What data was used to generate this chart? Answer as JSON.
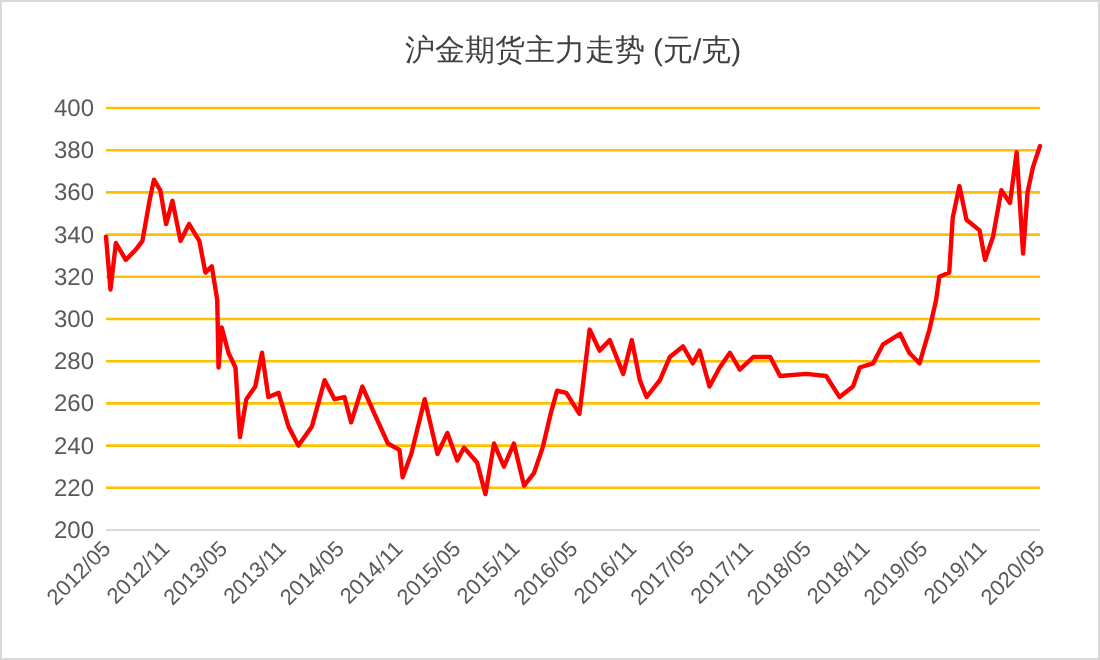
{
  "chart_data": {
    "type": "line",
    "title": "沪金期货主力走势 (元/克)",
    "x": [
      "2012-05-01",
      "2012-05-15",
      "2012-06-01",
      "2012-07-02",
      "2012-08-03",
      "2012-08-23",
      "2012-09-14",
      "2012-09-28",
      "2012-10-18",
      "2012-11-05",
      "2012-11-25",
      "2012-12-20",
      "2013-01-16",
      "2013-02-17",
      "2013-03-08",
      "2013-03-28",
      "2013-04-14",
      "2013-04-18",
      "2013-04-28",
      "2013-05-19",
      "2013-06-10",
      "2013-06-24",
      "2013-07-14",
      "2013-08-11",
      "2013-09-01",
      "2013-09-21",
      "2013-10-23",
      "2013-11-23",
      "2013-12-24",
      "2014-02-04",
      "2014-03-16",
      "2014-04-16",
      "2014-05-17",
      "2014-06-07",
      "2014-07-12",
      "2014-08-19",
      "2014-09-30",
      "2014-11-05",
      "2014-11-15",
      "2014-12-12",
      "2015-01-23",
      "2015-03-04",
      "2015-04-04",
      "2015-05-05",
      "2015-05-26",
      "2015-07-06",
      "2015-08-01",
      "2015-08-28",
      "2015-09-28",
      "2015-10-29",
      "2015-11-30",
      "2015-12-31",
      "2016-01-27",
      "2016-02-21",
      "2016-03-12",
      "2016-04-10",
      "2016-05-21",
      "2016-06-22",
      "2016-07-23",
      "2016-08-24",
      "2016-10-05",
      "2016-11-01",
      "2016-11-26",
      "2016-12-17",
      "2017-01-28",
      "2017-02-28",
      "2017-04-10",
      "2017-05-11",
      "2017-06-01",
      "2017-07-02",
      "2017-08-03",
      "2017-09-04",
      "2017-10-05",
      "2017-11-16",
      "2018-01-08",
      "2018-02-08",
      "2018-05-01",
      "2018-07-02",
      "2018-08-13",
      "2018-09-24",
      "2018-10-15",
      "2018-11-26",
      "2018-12-27",
      "2019-02-18",
      "2019-03-19",
      "2019-04-20",
      "2019-05-21",
      "2019-06-11",
      "2019-06-21",
      "2019-07-22",
      "2019-08-02",
      "2019-08-23",
      "2019-09-14",
      "2019-10-25",
      "2019-11-11",
      "2019-12-06",
      "2020-01-01",
      "2020-01-28",
      "2020-02-18",
      "2020-03-09",
      "2020-03-23",
      "2020-04-09",
      "2020-05-01"
    ],
    "series": [
      {
        "color": "#ff0000",
        "values": [
          339,
          314,
          336,
          328,
          333,
          337,
          356,
          366,
          361,
          345,
          356,
          337,
          345,
          337,
          322,
          325,
          309,
          277,
          296,
          284,
          277,
          244,
          262,
          268,
          284,
          263,
          265,
          249,
          240,
          249,
          271,
          262,
          263,
          251,
          268,
          255,
          241,
          238,
          225,
          236,
          262,
          236,
          246,
          233,
          239,
          232,
          217,
          241,
          230,
          241,
          221,
          227,
          239,
          255,
          266,
          265,
          255,
          295,
          285,
          290,
          274,
          290,
          271,
          263,
          271,
          282,
          287,
          279,
          285,
          268,
          277,
          284,
          276,
          282,
          282,
          273,
          274,
          273,
          263,
          268,
          277,
          279,
          288,
          293,
          284,
          279,
          295,
          309,
          320,
          322,
          348,
          363,
          347,
          342,
          328,
          339,
          361,
          355,
          379,
          331,
          360,
          372,
          382
        ]
      }
    ],
    "xlim": [
      "2012-05-01",
      "2020-05-01"
    ],
    "xticks": [
      {
        "value": "2012-05-01",
        "label": "2012/05"
      },
      {
        "value": "2012-11-01",
        "label": "2012/11"
      },
      {
        "value": "2013-05-01",
        "label": "2013/05"
      },
      {
        "value": "2013-11-01",
        "label": "2013/11"
      },
      {
        "value": "2014-05-01",
        "label": "2014/05"
      },
      {
        "value": "2014-11-01",
        "label": "2014/11"
      },
      {
        "value": "2015-05-01",
        "label": "2015/05"
      },
      {
        "value": "2015-11-01",
        "label": "2015/11"
      },
      {
        "value": "2016-05-01",
        "label": "2016/05"
      },
      {
        "value": "2016-11-01",
        "label": "2016/11"
      },
      {
        "value": "2017-05-01",
        "label": "2017/05"
      },
      {
        "value": "2017-11-01",
        "label": "2017/11"
      },
      {
        "value": "2018-05-01",
        "label": "2018/05"
      },
      {
        "value": "2018-11-01",
        "label": "2018/11"
      },
      {
        "value": "2019-05-01",
        "label": "2019/05"
      },
      {
        "value": "2019-11-01",
        "label": "2019/11"
      },
      {
        "value": "2020-05-01",
        "label": "2020/05"
      }
    ],
    "ylim": [
      200,
      400
    ],
    "yticks": [
      200,
      220,
      240,
      260,
      280,
      300,
      320,
      340,
      360,
      380,
      400
    ],
    "grid": "y",
    "marker": "none",
    "line_style": "solid"
  }
}
